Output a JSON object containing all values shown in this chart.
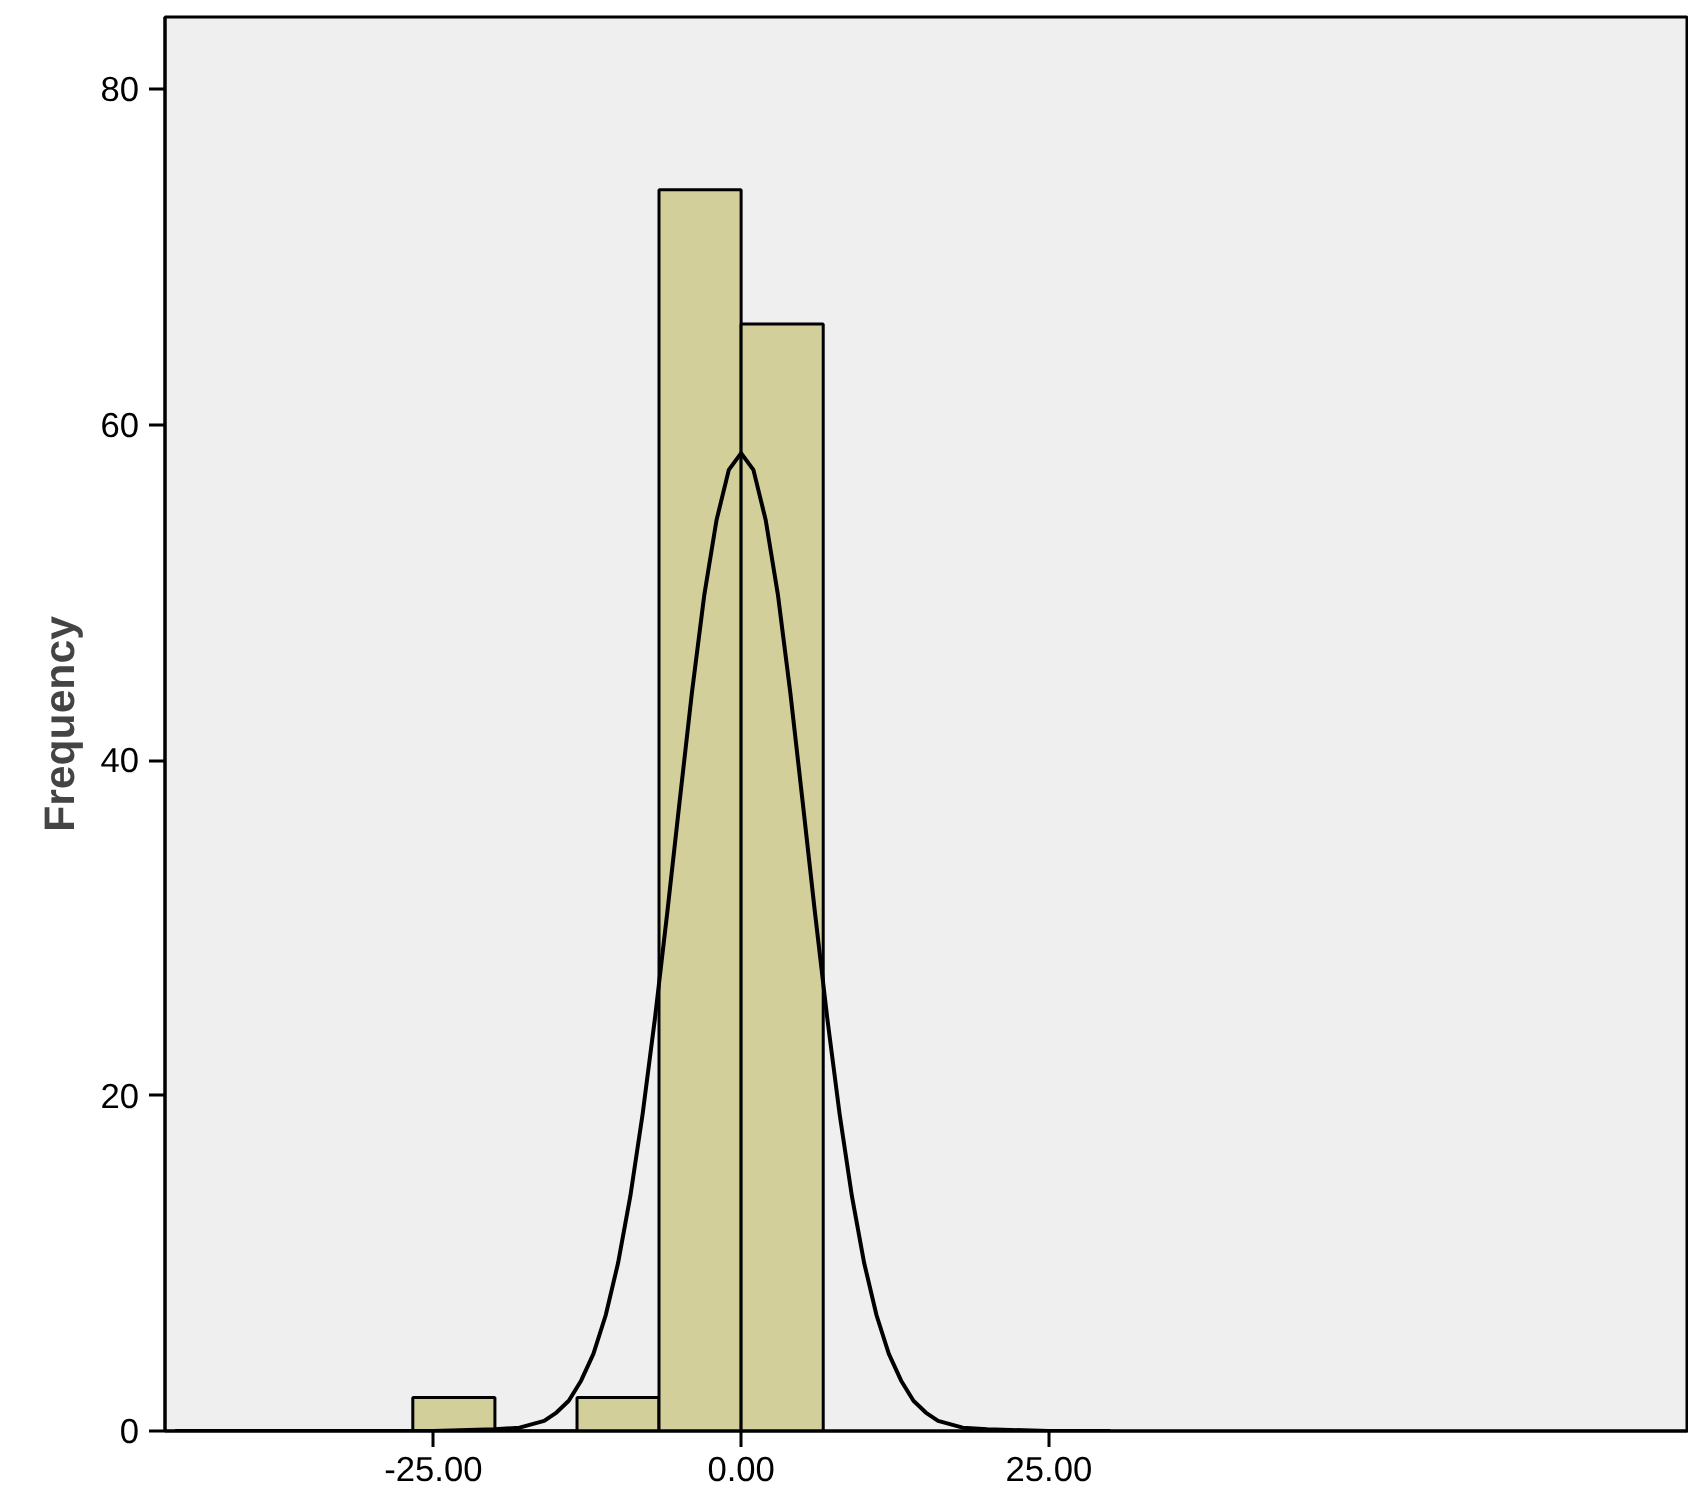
{
  "chart_data": {
    "type": "histogram",
    "ylabel": "Frequency",
    "bins": [
      -26.67,
      -20,
      -13.33,
      -6.67,
      0,
      6.67
    ],
    "values": [
      2,
      0,
      2,
      74,
      66
    ],
    "color": "#d3cf9a",
    "series": [
      {
        "type": "line",
        "color": "#000000",
        "x": [
          -46,
          -30,
          -25,
          -20,
          -18,
          -16,
          -15,
          -14,
          -13,
          -12,
          -11,
          -10,
          -9,
          -8,
          -7,
          -6,
          -5,
          -4,
          -3,
          -2,
          -1,
          0,
          1,
          2,
          3,
          4,
          5,
          6,
          7,
          8,
          9,
          10,
          11,
          12,
          13,
          14,
          15,
          16,
          18,
          20,
          25,
          30
        ],
        "values": [
          0,
          0,
          0,
          0.1,
          0.2,
          0.6,
          1.1,
          1.8,
          3.0,
          4.6,
          6.9,
          10.0,
          14.0,
          18.9,
          24.6,
          30.9,
          37.5,
          44.0,
          49.8,
          54.3,
          57.3,
          58.3,
          57.3,
          54.3,
          49.8,
          44.0,
          37.5,
          30.9,
          24.6,
          18.9,
          14.0,
          10.0,
          6.9,
          4.6,
          3.0,
          1.8,
          1.1,
          0.6,
          0.2,
          0.1,
          0,
          0
        ]
      }
    ],
    "xlim": [
      -46.8,
      77
    ],
    "xticks": [
      {
        "value": -25,
        "label": "-25.00"
      },
      {
        "value": 0,
        "label": "0.00"
      },
      {
        "value": 25,
        "label": "25.00"
      }
    ],
    "ylim": [
      0,
      84.3
    ],
    "yticks": [
      0,
      20,
      40,
      60,
      80
    ],
    "grid": false
  }
}
